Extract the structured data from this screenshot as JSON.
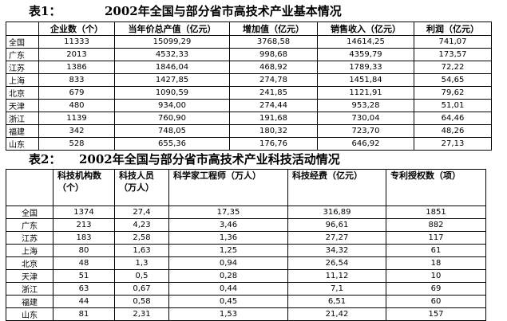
{
  "table1": {
    "label": "表1：",
    "title": "2002年全国与部分省市高技术产业基本情况",
    "headers": [
      "",
      "企业数（个）",
      "当年价总产值（亿元）",
      "增加值（亿元）",
      "销售收入（亿元）",
      "利润（亿元）"
    ],
    "rows": [
      [
        "全国",
        "11333",
        "15099,29",
        "3768,58",
        "14614,25",
        "741,07"
      ],
      [
        "广东",
        "2013",
        "4532,33",
        "998,68",
        "4359,79",
        "173,57"
      ],
      [
        "江苏",
        "1386",
        "1846,04",
        "468,92",
        "1789,33",
        "72,22"
      ],
      [
        "上海",
        "833",
        "1427,85",
        "274,78",
        "1451,84",
        "54,65"
      ],
      [
        "北京",
        "679",
        "1090,59",
        "241,85",
        "1121,91",
        "79,62"
      ],
      [
        "天津",
        "480",
        "934,00",
        "274,44",
        "953,28",
        "51,01"
      ],
      [
        "浙江",
        "1139",
        "760,90",
        "191,68",
        "730,04",
        "64,46"
      ],
      [
        "福建",
        "342",
        "748,05",
        "180,32",
        "723,70",
        "48,26"
      ],
      [
        "山东",
        "528",
        "655,36",
        "176,76",
        "646,92",
        "27,13"
      ]
    ]
  },
  "table2": {
    "label": "表2：",
    "title": "2002年全国与部分省市高技术产业科技活动情况",
    "headers": [
      "",
      "科技机构数（个）",
      "科技人员（万人）",
      "科学家工程师（万人）",
      "科技经费（亿元）",
      "专利授权数（项）"
    ],
    "rows": [
      [
        "全国",
        "1374",
        "27,4",
        "17,35",
        "316,89",
        "1851"
      ],
      [
        "广东",
        "213",
        "4,23",
        "3,46",
        "96,61",
        "882"
      ],
      [
        "江苏",
        "183",
        "2,58",
        "1,36",
        "27,27",
        "117"
      ],
      [
        "上海",
        "80",
        "1,63",
        "1,25",
        "34,32",
        "61"
      ],
      [
        "北京",
        "48",
        "1,3",
        "0,94",
        "26,54",
        "18"
      ],
      [
        "天津",
        "51",
        "0,5",
        "0,28",
        "11,12",
        "10"
      ],
      [
        "浙江",
        "63",
        "0,67",
        "0,44",
        "7,1",
        "69"
      ],
      [
        "福建",
        "44",
        "0,58",
        "0,45",
        "6,51",
        "60"
      ],
      [
        "山东",
        "81",
        "2,31",
        "1,53",
        "21,42",
        "157"
      ]
    ]
  }
}
